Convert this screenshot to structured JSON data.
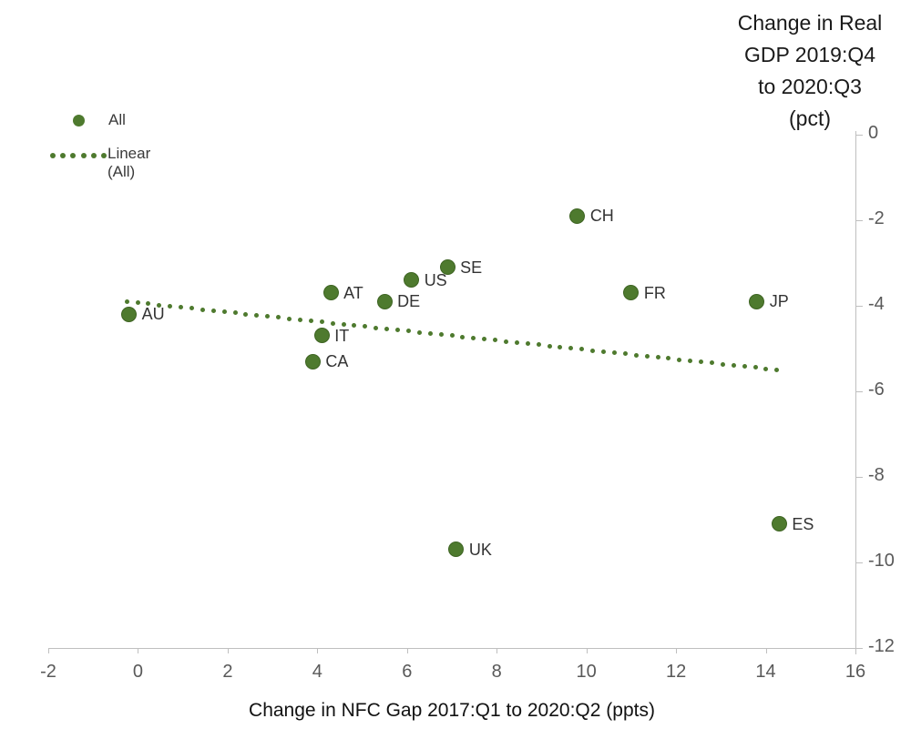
{
  "chart_data": {
    "type": "scatter",
    "title_lines": [
      "Change in Real",
      "GDP 2019:Q4",
      "to 2020:Q3",
      "(pct)"
    ],
    "title": "Change in Real GDP 2019:Q4 to 2020:Q3 (pct)",
    "xlabel": "Change in NFC Gap 2017:Q1 to 2020:Q2 (ppts)",
    "ylabel": "Change in Real GDP 2019:Q4 to 2020:Q3 (pct)",
    "xlim": [
      -2,
      16
    ],
    "ylim": [
      -12,
      0
    ],
    "x_ticks": [
      "-2",
      "0",
      "2",
      "4",
      "6",
      "8",
      "10",
      "12",
      "14",
      "16"
    ],
    "y_ticks": [
      "0",
      "-2",
      "-4",
      "-6",
      "-8",
      "-10",
      "-12"
    ],
    "grid": "off",
    "legend_position": "top-left",
    "legend": [
      {
        "label": "All",
        "marker": "filled-dot"
      },
      {
        "label": "Linear (All)",
        "marker": "dotted-line"
      }
    ],
    "series": [
      {
        "name": "All",
        "points": [
          {
            "label": "AU",
            "x": -0.2,
            "y": -4.2
          },
          {
            "label": "CA",
            "x": 3.9,
            "y": -5.3
          },
          {
            "label": "IT",
            "x": 4.1,
            "y": -4.7
          },
          {
            "label": "AT",
            "x": 4.3,
            "y": -3.7
          },
          {
            "label": "DE",
            "x": 5.5,
            "y": -3.9
          },
          {
            "label": "US",
            "x": 6.1,
            "y": -3.4
          },
          {
            "label": "SE",
            "x": 6.9,
            "y": -3.1
          },
          {
            "label": "UK",
            "x": 7.1,
            "y": -9.7
          },
          {
            "label": "CH",
            "x": 9.8,
            "y": -1.9
          },
          {
            "label": "FR",
            "x": 11.0,
            "y": -3.7
          },
          {
            "label": "JP",
            "x": 13.8,
            "y": -3.9
          },
          {
            "label": "ES",
            "x": 14.3,
            "y": -9.1
          }
        ]
      }
    ],
    "trendline": {
      "name": "Linear (All)",
      "x1": -0.25,
      "y1": -3.9,
      "x2": 14.25,
      "y2": -5.5
    },
    "colors": {
      "series_green": "#4e7a2e",
      "series_green_border": "#3e6423",
      "axis_line": "#bfbfbf",
      "tick_label": "#595959",
      "title_text": "#1a1a1a",
      "point_label": "#333333"
    }
  }
}
